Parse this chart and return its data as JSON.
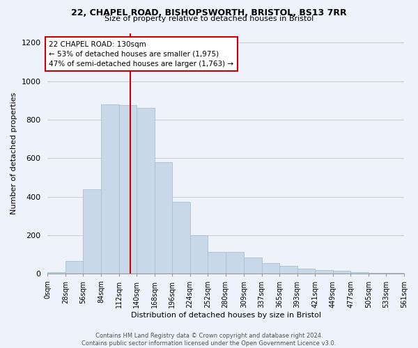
{
  "title_line1": "22, CHAPEL ROAD, BISHOPSWORTH, BRISTOL, BS13 7RR",
  "title_line2": "Size of property relative to detached houses in Bristol",
  "xlabel": "Distribution of detached houses by size in Bristol",
  "ylabel": "Number of detached properties",
  "bar_edges": [
    0,
    28,
    56,
    84,
    112,
    140,
    168,
    196,
    224,
    252,
    280,
    309,
    337,
    365,
    393,
    421,
    449,
    477,
    505,
    533,
    561
  ],
  "bar_heights": [
    10,
    65,
    440,
    880,
    875,
    860,
    580,
    375,
    200,
    115,
    115,
    85,
    55,
    40,
    25,
    18,
    15,
    10,
    5,
    5
  ],
  "bar_color": "#c8d8e8",
  "bar_edge_color": "#a8c0d0",
  "vline_x": 130,
  "vline_color": "#cc0000",
  "annotation_text": "22 CHAPEL ROAD: 130sqm\n← 53% of detached houses are smaller (1,975)\n47% of semi-detached houses are larger (1,763) →",
  "annotation_box_facecolor": "white",
  "annotation_box_edgecolor": "#cc0000",
  "ylim": [
    0,
    1250
  ],
  "yticks": [
    0,
    200,
    400,
    600,
    800,
    1000,
    1200
  ],
  "tick_labels": [
    "0sqm",
    "28sqm",
    "56sqm",
    "84sqm",
    "112sqm",
    "140sqm",
    "168sqm",
    "196sqm",
    "224sqm",
    "252sqm",
    "280sqm",
    "309sqm",
    "337sqm",
    "365sqm",
    "393sqm",
    "421sqm",
    "449sqm",
    "477sqm",
    "505sqm",
    "533sqm",
    "561sqm"
  ],
  "footer_line1": "Contains HM Land Registry data © Crown copyright and database right 2024.",
  "footer_line2": "Contains public sector information licensed under the Open Government Licence v3.0.",
  "bg_color": "#eef2fa",
  "grid_color": "#cccccc",
  "title1_fontsize": 9,
  "title2_fontsize": 8,
  "ylabel_fontsize": 8,
  "xlabel_fontsize": 8,
  "annotation_fontsize": 7.5,
  "ytick_fontsize": 8,
  "xtick_fontsize": 7
}
